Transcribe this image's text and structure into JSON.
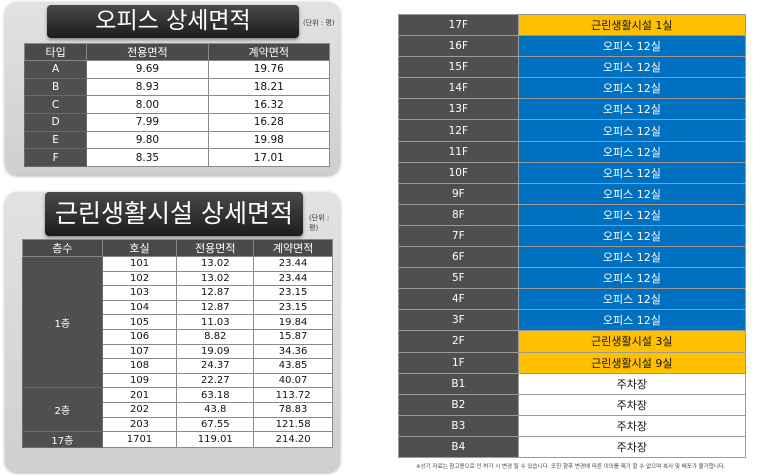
{
  "office": {
    "title": "오피스 상세면적",
    "unit": "(단위 : 평)",
    "headers": [
      "타입",
      "전용면적",
      "계약면적"
    ],
    "rows": [
      [
        "A",
        "9.69",
        "19.76"
      ],
      [
        "B",
        "8.93",
        "18.21"
      ],
      [
        "C",
        "8.00",
        "16.32"
      ],
      [
        "D",
        "7.99",
        "16.28"
      ],
      [
        "E",
        "9.80",
        "19.98"
      ],
      [
        "F",
        "8.35",
        "17.01"
      ]
    ]
  },
  "retail": {
    "title": "근린생활시설 상세면적",
    "unit": "(단위 : 평)",
    "headers": [
      "층수",
      "호실",
      "전용면적",
      "계약면적"
    ],
    "groups": [
      {
        "floor": "1층",
        "rows": [
          [
            "101",
            "13.02",
            "23.44"
          ],
          [
            "102",
            "13.02",
            "23.44"
          ],
          [
            "103",
            "12.87",
            "23.15"
          ],
          [
            "104",
            "12.87",
            "23.15"
          ],
          [
            "105",
            "11.03",
            "19.84"
          ],
          [
            "106",
            "8.82",
            "15.87"
          ],
          [
            "107",
            "19.09",
            "34.36"
          ],
          [
            "108",
            "24.37",
            "43.85"
          ],
          [
            "109",
            "22.27",
            "40.07"
          ]
        ]
      },
      {
        "floor": "2층",
        "rows": [
          [
            "201",
            "63.18",
            "113.72"
          ],
          [
            "202",
            "43.8",
            "78.83"
          ],
          [
            "203",
            "67.55",
            "121.58"
          ]
        ]
      },
      {
        "floor": "17층",
        "rows": [
          [
            "1701",
            "119.01",
            "214.20"
          ]
        ]
      }
    ]
  },
  "floors": [
    {
      "floor": "17F",
      "use": "근린생활시설 1실",
      "color": "#ffc000"
    },
    {
      "floor": "16F",
      "use": "오피스 12실",
      "color": "#0070c0"
    },
    {
      "floor": "15F",
      "use": "오피스 12실",
      "color": "#0070c0"
    },
    {
      "floor": "14F",
      "use": "오피스 12실",
      "color": "#0070c0"
    },
    {
      "floor": "13F",
      "use": "오피스 12실",
      "color": "#0070c0"
    },
    {
      "floor": "12F",
      "use": "오피스 12실",
      "color": "#0070c0"
    },
    {
      "floor": "11F",
      "use": "오피스 12실",
      "color": "#0070c0"
    },
    {
      "floor": "10F",
      "use": "오피스 12실",
      "color": "#0070c0"
    },
    {
      "floor": "9F",
      "use": "오피스 12실",
      "color": "#0070c0"
    },
    {
      "floor": "8F",
      "use": "오피스 12실",
      "color": "#0070c0"
    },
    {
      "floor": "7F",
      "use": "오피스 12실",
      "color": "#0070c0"
    },
    {
      "floor": "6F",
      "use": "오피스 12실",
      "color": "#0070c0"
    },
    {
      "floor": "5F",
      "use": "오피스 12실",
      "color": "#0070c0"
    },
    {
      "floor": "4F",
      "use": "오피스 12실",
      "color": "#0070c0"
    },
    {
      "floor": "3F",
      "use": "오피스 12실",
      "color": "#0070c0"
    },
    {
      "floor": "2F",
      "use": "근린생활시설 3실",
      "color": "#ffc000"
    },
    {
      "floor": "1F",
      "use": "근린생활시설 9실",
      "color": "#ffc000"
    },
    {
      "floor": "B1",
      "use": "주차장",
      "color": "#ffffff"
    },
    {
      "floor": "B2",
      "use": "주차장",
      "color": "#ffffff"
    },
    {
      "floor": "B3",
      "use": "주차장",
      "color": "#ffffff"
    },
    {
      "floor": "B4",
      "use": "주차장",
      "color": "#ffffff"
    }
  ],
  "footnote": "※상기 자료는 참고용으로 인·허가 시 변경 될 수 있습니다. 또한 향후 변경에 따른 이의를 제기 할 수 없으며 복사 및 배포가 불가합니다."
}
